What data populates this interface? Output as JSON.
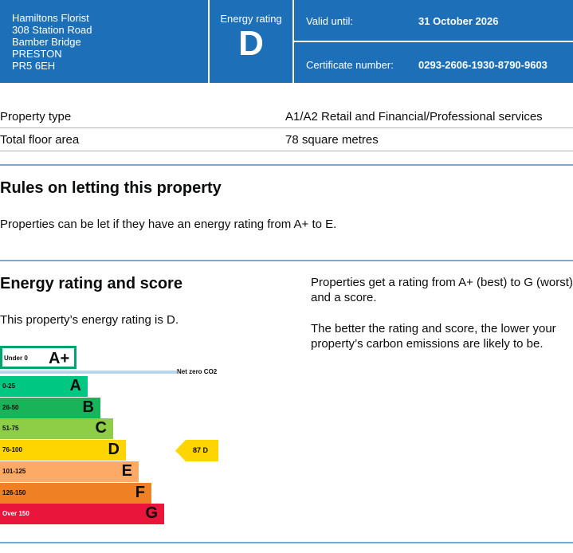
{
  "header": {
    "address_lines": [
      "Hamiltons Florist",
      "308 Station Road",
      "Bamber Bridge",
      "PRESTON",
      "PR5 6EH"
    ],
    "energy_rating_label": "Energy rating",
    "energy_rating_value": "D",
    "valid_until_label": "Valid until:",
    "valid_until_value": "31 October 2026",
    "certificate_label": "Certificate number:",
    "certificate_value": "0293-2606-1930-8790-9603"
  },
  "summary": [
    {
      "label": "Property type",
      "value": "A1/A2 Retail and Financial/Professional services"
    },
    {
      "label": "Total floor area",
      "value": "78 square metres"
    }
  ],
  "letting": {
    "heading": "Rules on letting this property",
    "text": "Properties can be let if they have an energy rating from A+ to E."
  },
  "score": {
    "heading": "Energy rating and score",
    "text": "This property’s energy rating is D.",
    "side_text_1": "Properties get a rating from A+ (best) to G (worst) and a score.",
    "side_text_2": "The better the rating and score, the lower your property’s carbon emissions are likely to be."
  },
  "chart_data": {
    "type": "bar",
    "title": "",
    "bands": [
      {
        "range": "Under 0",
        "letter": "A+",
        "color": "#00a56d"
      },
      {
        "range": "0-25",
        "letter": "A",
        "color": "#00c781"
      },
      {
        "range": "26-50",
        "letter": "B",
        "color": "#19b459"
      },
      {
        "range": "51-75",
        "letter": "C",
        "color": "#8dce46"
      },
      {
        "range": "76-100",
        "letter": "D",
        "color": "#ffd500"
      },
      {
        "range": "101-125",
        "letter": "E",
        "color": "#fcaa65"
      },
      {
        "range": "126-150",
        "letter": "F",
        "color": "#ef8023"
      },
      {
        "range": "Over 150",
        "letter": "G",
        "color": "#e9153b"
      }
    ],
    "net_zero_label": "Net zero CO2",
    "current": {
      "score": 87,
      "letter": "D",
      "label": "87  D",
      "color": "#ffd500"
    }
  },
  "colors": {
    "brand": "#1d70b8"
  }
}
